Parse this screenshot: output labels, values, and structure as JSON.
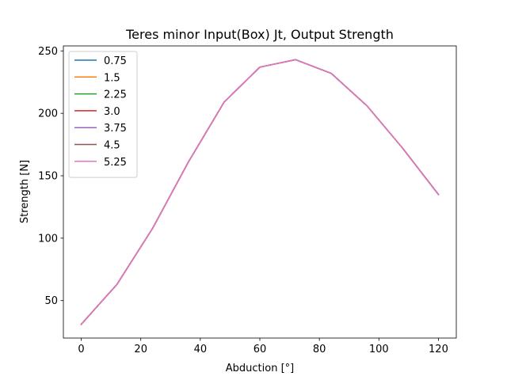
{
  "chart_data": {
    "type": "line",
    "title": "Teres minor Input(Box) Jt, Output Strength",
    "xlabel": "Abduction [°]",
    "ylabel": "Strength [N]",
    "xlim": [
      -6,
      126
    ],
    "ylim": [
      20,
      254
    ],
    "xticks": [
      0,
      20,
      40,
      60,
      80,
      100,
      120
    ],
    "yticks": [
      50,
      100,
      150,
      200,
      250
    ],
    "x": [
      0,
      12,
      24,
      36,
      48,
      60,
      72,
      84,
      96,
      108,
      120
    ],
    "grid": false,
    "legend_position": "upper-left",
    "series": [
      {
        "name": "0.75",
        "color": "#1f77b4",
        "values": [
          31,
          63,
          108,
          161,
          209,
          237,
          243,
          232,
          206,
          172,
          135
        ]
      },
      {
        "name": "1.5",
        "color": "#ff7f0e",
        "values": [
          31,
          63,
          108,
          161,
          209,
          237,
          243,
          232,
          206,
          172,
          135
        ]
      },
      {
        "name": "2.25",
        "color": "#2ca02c",
        "values": [
          31,
          63,
          108,
          161,
          209,
          237,
          243,
          232,
          206,
          172,
          135
        ]
      },
      {
        "name": "3.0",
        "color": "#d62728",
        "values": [
          31,
          63,
          108,
          161,
          209,
          237,
          243,
          232,
          206,
          172,
          135
        ]
      },
      {
        "name": "3.75",
        "color": "#9467bd",
        "values": [
          31,
          63,
          108,
          161,
          209,
          237,
          243,
          232,
          206,
          172,
          135
        ]
      },
      {
        "name": "4.5",
        "color": "#8c564b",
        "values": [
          31,
          63,
          108,
          161,
          209,
          237,
          243,
          232,
          206,
          172,
          135
        ]
      },
      {
        "name": "5.25",
        "color": "#e377c2",
        "values": [
          31,
          63,
          108,
          161,
          209,
          237,
          243,
          232,
          206,
          172,
          135
        ]
      }
    ]
  }
}
